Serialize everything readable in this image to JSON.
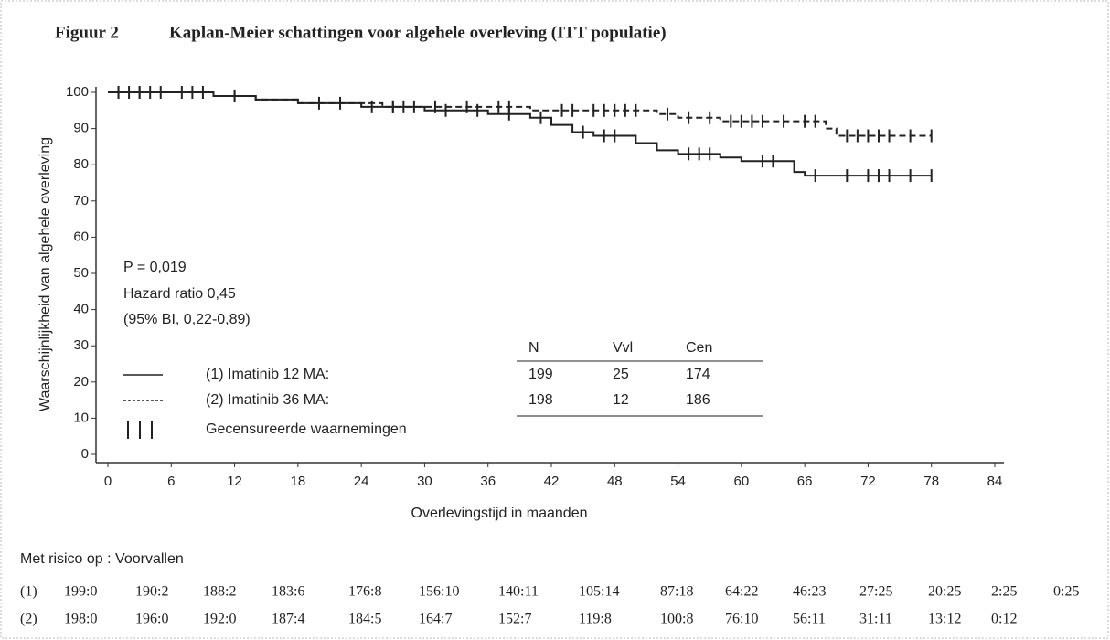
{
  "chart_data": {
    "type": "line",
    "figure_label": "Figuur 2",
    "title": "Kaplan-Meier schattingen voor algehele overleving (ITT populatie)",
    "ylabel": "Waarschijnlijkheid van algehele overleving",
    "xlabel": "Overlevingstijd in maanden",
    "xlim": [
      0,
      84
    ],
    "ylim": [
      0,
      100
    ],
    "xticks": [
      0,
      6,
      12,
      18,
      24,
      30,
      36,
      42,
      48,
      54,
      60,
      66,
      72,
      78,
      84
    ],
    "yticks": [
      0,
      10,
      20,
      30,
      40,
      50,
      60,
      70,
      80,
      90,
      100
    ],
    "series": [
      {
        "name": "(1) Imatinib 12 MA:",
        "color": "#222222",
        "style": "solid",
        "x": [
          0,
          10,
          14,
          18,
          24,
          30,
          36,
          40,
          42,
          44,
          46,
          50,
          52,
          54,
          58,
          60,
          65,
          66,
          78
        ],
        "values": [
          100,
          99,
          98,
          97,
          96,
          95,
          94,
          93,
          91,
          89,
          88,
          86,
          84,
          83,
          82,
          81,
          78,
          77,
          77
        ],
        "censored_x": [
          1,
          2,
          3,
          5,
          8,
          12,
          20,
          25,
          27,
          29,
          32,
          35,
          38,
          41,
          45,
          47,
          48,
          55,
          56,
          57,
          62,
          63,
          67,
          70,
          72,
          73,
          74,
          76,
          78
        ],
        "censored_y": [
          100,
          100,
          100,
          100,
          100,
          99,
          97,
          96,
          96,
          96,
          95,
          95,
          94,
          93,
          89,
          88,
          88,
          83,
          83,
          83,
          81,
          81,
          77,
          77,
          77,
          77,
          77,
          77,
          77
        ]
      },
      {
        "name": "(2) Imatinib 36 MA:",
        "color": "#222222",
        "style": "dashed",
        "x": [
          0,
          10,
          14,
          18,
          26,
          40,
          52,
          54,
          58,
          68,
          69,
          78
        ],
        "values": [
          100,
          99,
          98,
          97,
          96,
          95,
          94,
          93,
          92,
          90,
          88,
          88
        ],
        "censored_x": [
          1,
          3,
          4,
          7,
          9,
          12,
          22,
          27,
          28,
          31,
          34,
          37,
          38,
          43,
          44,
          46,
          47,
          48,
          49,
          50,
          53,
          55,
          57,
          59,
          60,
          61,
          62,
          64,
          66,
          67,
          70,
          71,
          72,
          73,
          74,
          76,
          78
        ],
        "censored_y": [
          100,
          100,
          100,
          100,
          100,
          99,
          97,
          96,
          96,
          96,
          96,
          96,
          96,
          95,
          95,
          95,
          95,
          95,
          95,
          95,
          94,
          93,
          93,
          92,
          92,
          92,
          92,
          92,
          92,
          92,
          88,
          88,
          88,
          88,
          88,
          88,
          88
        ]
      }
    ],
    "annotations": [
      "P = 0,019",
      "Hazard ratio 0,45",
      "(95% BI, 0,22-0,89)"
    ],
    "censor_legend": "Gecensureerde waarnemingen",
    "stats_table": {
      "header": [
        "N",
        "Vvl",
        "Cen"
      ],
      "rows": [
        [
          199,
          25,
          174
        ],
        [
          198,
          12,
          186
        ]
      ]
    },
    "risk_table": {
      "title": "Met risico op : Voorvallen",
      "rows": [
        {
          "label": "(1)",
          "values": [
            "199:0",
            "190:2",
            "188:2",
            "183:6",
            "176:8",
            "156:10",
            "140:11",
            "105:14",
            "87:18",
            "64:22",
            "46:23",
            "27:25",
            "20:25",
            "2:25",
            "0:25"
          ]
        },
        {
          "label": "(2)",
          "values": [
            "198:0",
            "196:0",
            "192:0",
            "187:4",
            "184:5",
            "164:7",
            "152:7",
            "119:8",
            "100:8",
            "76:10",
            "56:11",
            "31:11",
            "13:12",
            "0:12"
          ]
        }
      ]
    }
  }
}
